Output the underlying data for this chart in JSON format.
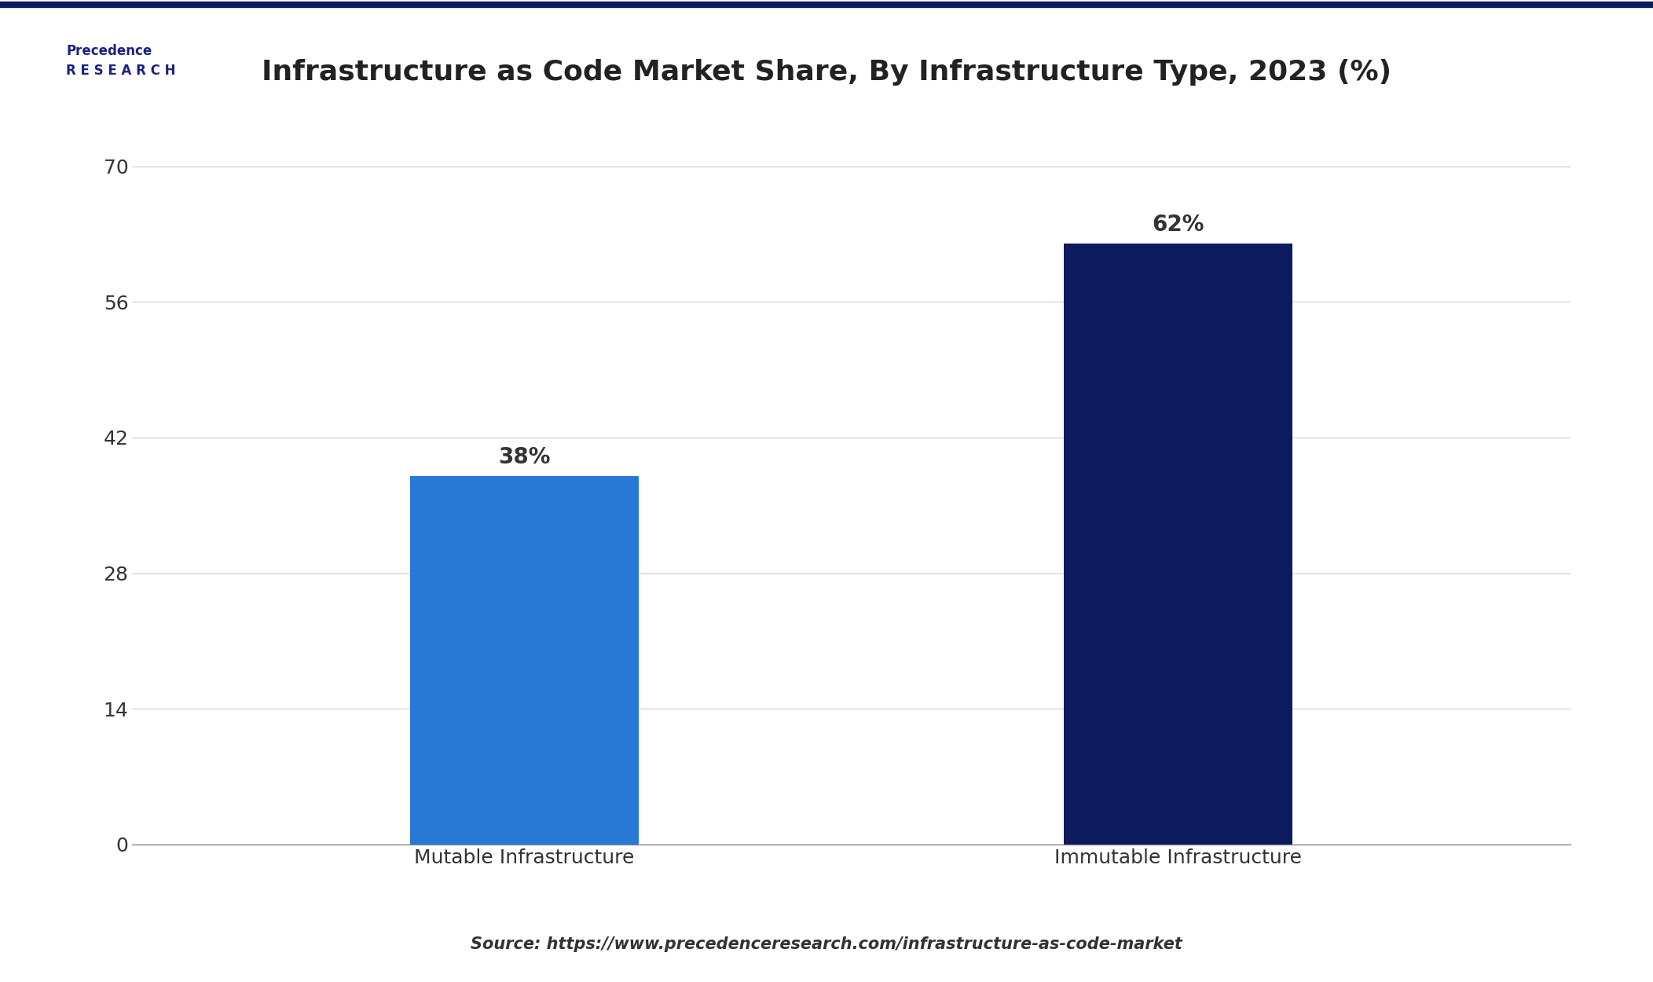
{
  "title": "Infrastructure as Code Market Share, By Infrastructure Type, 2023 (%)",
  "categories": [
    "Mutable Infrastructure",
    "Immutable Infrastructure"
  ],
  "values": [
    38,
    62
  ],
  "bar_colors": [
    "#2878d6",
    "#0d1a5e"
  ],
  "value_labels": [
    "38%",
    "62%"
  ],
  "yticks": [
    0,
    14,
    28,
    42,
    56,
    70
  ],
  "ylim": [
    0,
    75
  ],
  "source_text": "Source: https://www.precedenceresearch.com/infrastructure-as-code-market",
  "background_color": "#ffffff",
  "grid_color": "#cccccc",
  "title_fontsize": 26,
  "tick_fontsize": 18,
  "label_fontsize": 18,
  "value_fontsize": 20,
  "source_fontsize": 15,
  "bar_width": 0.35,
  "top_border_color": "#0d1a5e"
}
